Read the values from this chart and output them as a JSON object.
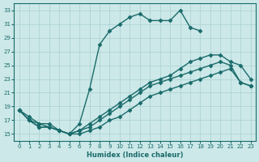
{
  "xlabel": "Humidex (Indice chaleur)",
  "xlim": [
    -0.5,
    23.5
  ],
  "ylim": [
    14.0,
    34.0
  ],
  "xticks": [
    0,
    1,
    2,
    3,
    4,
    5,
    6,
    7,
    8,
    9,
    10,
    11,
    12,
    13,
    14,
    15,
    16,
    17,
    18,
    19,
    20,
    21,
    22,
    23
  ],
  "yticks": [
    15,
    17,
    19,
    21,
    23,
    25,
    27,
    29,
    31,
    33
  ],
  "bg_color": "#cce8e8",
  "line_color": "#1a6b6b",
  "grid_color": "#aad0d0",
  "curve1_x": [
    0,
    1,
    2,
    3,
    4,
    5,
    6,
    7,
    8,
    9,
    10,
    11,
    12,
    13,
    14,
    15,
    16,
    17,
    18
  ],
  "curve1_y": [
    18.5,
    17.5,
    16.5,
    16.5,
    15.5,
    15.0,
    16.5,
    21.5,
    28.0,
    30.0,
    31.0,
    32.0,
    32.5,
    31.5,
    31.5,
    31.5,
    33.0,
    30.5,
    30.0
  ],
  "curve2_x": [
    0,
    1,
    2,
    3,
    4,
    5,
    6,
    7,
    8,
    9,
    10,
    11,
    12,
    13,
    14,
    15,
    16,
    17,
    18,
    19,
    20,
    21,
    22,
    23
  ],
  "curve2_y": [
    18.5,
    17.0,
    16.5,
    16.0,
    15.5,
    15.0,
    15.5,
    16.5,
    17.5,
    18.5,
    19.5,
    20.5,
    21.5,
    22.5,
    23.0,
    23.5,
    24.5,
    25.5,
    26.0,
    26.5,
    26.5,
    25.5,
    25.0,
    23.0
  ],
  "curve3_x": [
    0,
    1,
    2,
    3,
    4,
    5,
    6,
    7,
    8,
    9,
    10,
    11,
    12,
    13,
    14,
    15,
    16,
    17,
    18,
    19,
    20,
    21,
    22,
    23
  ],
  "curve3_y": [
    18.5,
    17.0,
    16.0,
    16.0,
    15.5,
    15.0,
    15.5,
    16.0,
    17.0,
    18.0,
    19.0,
    20.0,
    21.0,
    22.0,
    22.5,
    23.0,
    23.5,
    24.0,
    24.5,
    25.0,
    25.5,
    25.0,
    22.5,
    22.0
  ],
  "curve4_x": [
    0,
    1,
    2,
    3,
    4,
    5,
    6,
    7,
    8,
    9,
    10,
    11,
    12,
    13,
    14,
    15,
    16,
    17,
    18,
    19,
    20,
    21,
    22,
    23
  ],
  "curve4_y": [
    18.5,
    17.0,
    16.0,
    16.0,
    15.5,
    15.0,
    15.0,
    15.5,
    16.0,
    17.0,
    17.5,
    18.5,
    19.5,
    20.5,
    21.0,
    21.5,
    22.0,
    22.5,
    23.0,
    23.5,
    24.0,
    24.5,
    22.5,
    22.0
  ]
}
